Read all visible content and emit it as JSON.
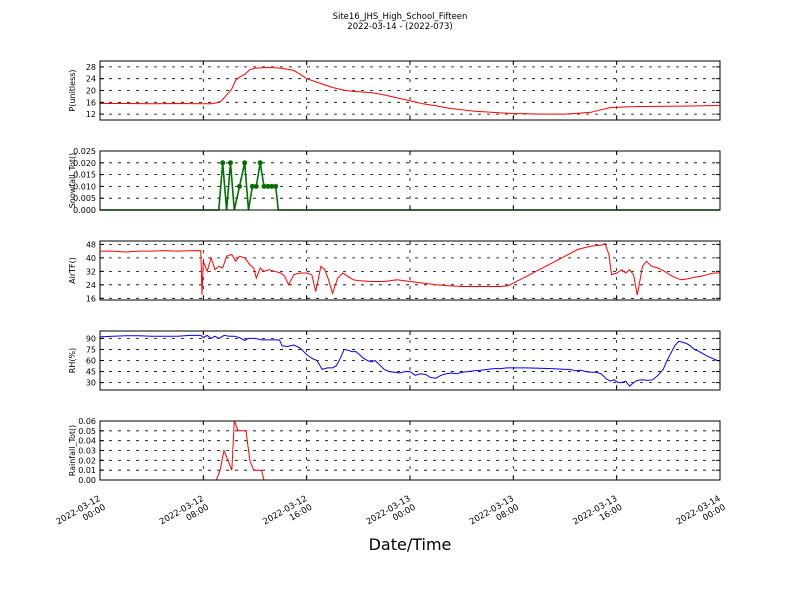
{
  "header": {
    "title": "Site16_JHS_High_School_Fifteen",
    "subtitle": "2022-03-14 - (2022-073)"
  },
  "xaxis": {
    "label": "Date/Time",
    "range_hours": [
      0,
      48
    ],
    "ticks": [
      {
        "hours": 0,
        "line1": "2022-03-12",
        "line2": "00:00"
      },
      {
        "hours": 8,
        "line1": "2022-03-12",
        "line2": "08:00"
      },
      {
        "hours": 16,
        "line1": "2022-03-12",
        "line2": "16:00"
      },
      {
        "hours": 24,
        "line1": "2022-03-13",
        "line2": "00:00"
      },
      {
        "hours": 32,
        "line1": "2022-03-13",
        "line2": "08:00"
      },
      {
        "hours": 40,
        "line1": "2022-03-13",
        "line2": "16:00"
      },
      {
        "hours": 48,
        "line1": "2022-03-14",
        "line2": "00:00"
      }
    ]
  },
  "chart_data": [
    {
      "type": "line",
      "ylabel": "P(unitless)",
      "ylim": [
        10,
        30
      ],
      "yticks": [
        12,
        16,
        20,
        24,
        28
      ],
      "yticklabels": [
        "12",
        "16",
        "20",
        "24",
        "28"
      ],
      "color": "#ff0000",
      "markers": false,
      "grid": true,
      "points": [
        [
          0,
          15.6
        ],
        [
          2,
          15.6
        ],
        [
          4,
          15.5
        ],
        [
          6,
          15.6
        ],
        [
          8,
          15.5
        ],
        [
          8.6,
          15.5
        ],
        [
          9,
          15.8
        ],
        [
          9.4,
          16.5
        ],
        [
          9.8,
          18.5
        ],
        [
          10.2,
          20.5
        ],
        [
          10.5,
          23.5
        ],
        [
          10.8,
          24.5
        ],
        [
          11.2,
          25.5
        ],
        [
          11.6,
          27
        ],
        [
          12,
          27.6
        ],
        [
          13,
          27.8
        ],
        [
          14,
          27.6
        ],
        [
          14.5,
          27.2
        ],
        [
          15,
          26.8
        ],
        [
          15.5,
          25.5
        ],
        [
          16,
          24
        ],
        [
          17,
          22.5
        ],
        [
          18,
          21
        ],
        [
          19,
          20
        ],
        [
          20,
          19.6
        ],
        [
          21,
          19.3
        ],
        [
          22,
          18.5
        ],
        [
          23,
          17.5
        ],
        [
          24,
          16.5
        ],
        [
          25,
          15.5
        ],
        [
          26,
          14.8
        ],
        [
          27,
          14
        ],
        [
          28,
          13.5
        ],
        [
          29,
          13
        ],
        [
          30,
          12.7
        ],
        [
          31,
          12.4
        ],
        [
          32,
          12.2
        ],
        [
          33,
          12.1
        ],
        [
          34,
          12
        ],
        [
          35,
          12
        ],
        [
          36,
          12
        ],
        [
          37,
          12.3
        ],
        [
          38,
          12.6
        ],
        [
          38.8,
          13.5
        ],
        [
          39.5,
          14.2
        ],
        [
          41,
          14.5
        ],
        [
          43,
          14.6
        ],
        [
          45,
          14.7
        ],
        [
          48,
          14.9
        ]
      ]
    },
    {
      "type": "line",
      "ylabel": "Snowfall_Tot()",
      "ylim": [
        0,
        0.025
      ],
      "yticks": [
        0,
        0.005,
        0.01,
        0.015,
        0.02,
        0.025
      ],
      "yticklabels": [
        "0.000",
        "0.005",
        "0.010",
        "0.015",
        "0.020",
        "0.025"
      ],
      "color": "#007000",
      "markers": true,
      "grid": true,
      "points": [
        [
          0,
          0
        ],
        [
          2,
          0
        ],
        [
          4,
          0
        ],
        [
          6,
          0
        ],
        [
          8,
          0
        ],
        [
          9.2,
          0
        ],
        [
          9.5,
          0.02
        ],
        [
          9.8,
          0
        ],
        [
          10.1,
          0.02
        ],
        [
          10.4,
          0
        ],
        [
          10.8,
          0.01
        ],
        [
          11.2,
          0.02
        ],
        [
          11.5,
          0
        ],
        [
          11.8,
          0.01
        ],
        [
          12.1,
          0.01
        ],
        [
          12.4,
          0.02
        ],
        [
          12.7,
          0.01
        ],
        [
          13,
          0.01
        ],
        [
          13.3,
          0.01
        ],
        [
          13.6,
          0.01
        ],
        [
          13.8,
          0
        ],
        [
          16,
          0
        ],
        [
          20,
          0
        ],
        [
          24,
          0
        ],
        [
          28,
          0
        ],
        [
          32,
          0
        ],
        [
          36,
          0
        ],
        [
          40,
          0
        ],
        [
          44,
          0
        ],
        [
          48,
          0
        ]
      ]
    },
    {
      "type": "line",
      "ylabel": "AirTF()",
      "ylim": [
        15,
        50
      ],
      "yticks": [
        16,
        24,
        32,
        40,
        48
      ],
      "yticklabels": [
        "16",
        "24",
        "32",
        "40",
        "48"
      ],
      "color": "#ff0000",
      "markers": false,
      "grid": true,
      "points": [
        [
          0,
          44
        ],
        [
          1,
          44
        ],
        [
          2,
          43.5
        ],
        [
          3,
          44
        ],
        [
          4,
          44
        ],
        [
          5,
          44.3
        ],
        [
          6,
          44
        ],
        [
          7,
          44.2
        ],
        [
          7.8,
          44.3
        ],
        [
          7.9,
          18
        ],
        [
          8,
          38
        ],
        [
          8.3,
          32
        ],
        [
          8.6,
          40
        ],
        [
          8.9,
          33
        ],
        [
          9.2,
          35
        ],
        [
          9.5,
          34
        ],
        [
          9.8,
          41
        ],
        [
          10.2,
          42
        ],
        [
          10.5,
          38
        ],
        [
          10.8,
          41
        ],
        [
          11.2,
          40
        ],
        [
          11.6,
          36
        ],
        [
          11.9,
          34
        ],
        [
          12.1,
          28
        ],
        [
          12.4,
          34
        ],
        [
          12.7,
          32
        ],
        [
          13.1,
          33
        ],
        [
          13.5,
          32
        ],
        [
          14,
          31
        ],
        [
          14.3,
          29
        ],
        [
          14.6,
          24
        ],
        [
          15,
          30
        ],
        [
          15.5,
          31
        ],
        [
          16,
          31
        ],
        [
          16.4,
          30
        ],
        [
          16.7,
          20
        ],
        [
          17.1,
          35
        ],
        [
          17.4,
          33
        ],
        [
          17.7,
          27
        ],
        [
          18,
          19
        ],
        [
          18.4,
          28
        ],
        [
          18.8,
          31
        ],
        [
          19.2,
          29
        ],
        [
          19.6,
          27
        ],
        [
          20,
          26.5
        ],
        [
          21,
          26
        ],
        [
          22,
          26
        ],
        [
          23,
          27
        ],
        [
          24,
          26
        ],
        [
          25,
          25
        ],
        [
          26,
          24
        ],
        [
          27,
          23.5
        ],
        [
          28,
          23
        ],
        [
          29,
          23
        ],
        [
          30,
          23
        ],
        [
          31,
          23
        ],
        [
          31.6,
          23.5
        ],
        [
          32,
          25
        ],
        [
          33,
          29
        ],
        [
          34,
          33
        ],
        [
          35,
          37
        ],
        [
          36,
          41
        ],
        [
          37,
          45
        ],
        [
          38,
          47
        ],
        [
          38.8,
          47.5
        ],
        [
          39.1,
          48.5
        ],
        [
          39.4,
          42
        ],
        [
          39.6,
          30
        ],
        [
          40,
          31
        ],
        [
          40.4,
          33
        ],
        [
          40.7,
          31
        ],
        [
          41,
          33
        ],
        [
          41.3,
          30
        ],
        [
          41.6,
          18
        ],
        [
          42,
          35
        ],
        [
          42.3,
          38
        ],
        [
          42.7,
          35
        ],
        [
          43.2,
          34
        ],
        [
          43.7,
          32
        ],
        [
          44.1,
          30
        ],
        [
          44.6,
          28
        ],
        [
          45,
          27
        ],
        [
          45.5,
          27.5
        ],
        [
          46,
          28.5
        ],
        [
          46.5,
          29
        ],
        [
          47,
          30
        ],
        [
          47.5,
          31
        ],
        [
          48,
          31
        ]
      ]
    },
    {
      "type": "line",
      "ylabel": "RH(%)",
      "ylim": [
        20,
        100
      ],
      "yticks": [
        30,
        45,
        60,
        75,
        90
      ],
      "yticklabels": [
        "30",
        "45",
        "60",
        "75",
        "90"
      ],
      "color": "#0000ff",
      "markers": false,
      "grid": true,
      "points": [
        [
          0,
          92
        ],
        [
          1,
          93
        ],
        [
          2,
          93.5
        ],
        [
          3,
          93.5
        ],
        [
          4,
          93
        ],
        [
          5,
          93
        ],
        [
          6,
          93
        ],
        [
          7,
          94
        ],
        [
          7.8,
          94
        ],
        [
          8,
          91
        ],
        [
          8.3,
          94
        ],
        [
          8.6,
          90
        ],
        [
          8.9,
          93
        ],
        [
          9.2,
          90
        ],
        [
          9.6,
          94
        ],
        [
          10,
          93
        ],
        [
          10.4,
          93
        ],
        [
          10.8,
          91
        ],
        [
          11.2,
          87
        ],
        [
          11.5,
          90
        ],
        [
          12,
          90
        ],
        [
          12.5,
          88
        ],
        [
          13,
          88
        ],
        [
          13.5,
          88
        ],
        [
          13.9,
          88
        ],
        [
          14.1,
          80
        ],
        [
          14.5,
          79
        ],
        [
          15,
          81
        ],
        [
          15.5,
          77
        ],
        [
          16,
          68
        ],
        [
          16.5,
          62
        ],
        [
          16.8,
          60
        ],
        [
          17.2,
          48
        ],
        [
          17.6,
          50
        ],
        [
          18,
          50
        ],
        [
          18.3,
          53
        ],
        [
          18.6,
          63
        ],
        [
          18.9,
          75
        ],
        [
          19.2,
          74
        ],
        [
          19.5,
          72
        ],
        [
          19.8,
          72
        ],
        [
          20.1,
          68
        ],
        [
          20.4,
          63
        ],
        [
          20.7,
          60
        ],
        [
          21,
          58
        ],
        [
          21.3,
          60
        ],
        [
          21.6,
          55
        ],
        [
          22,
          48
        ],
        [
          22.4,
          45
        ],
        [
          22.8,
          44
        ],
        [
          23.2,
          43
        ],
        [
          23.6,
          45
        ],
        [
          24,
          45
        ],
        [
          24.4,
          40
        ],
        [
          24.8,
          42
        ],
        [
          25.2,
          41
        ],
        [
          25.6,
          37
        ],
        [
          26,
          36
        ],
        [
          26.4,
          40
        ],
        [
          26.8,
          42
        ],
        [
          27.2,
          43
        ],
        [
          27.6,
          42
        ],
        [
          28,
          44
        ],
        [
          28.5,
          45
        ],
        [
          29,
          46
        ],
        [
          29.5,
          47
        ],
        [
          30,
          48
        ],
        [
          30.5,
          49
        ],
        [
          31,
          49
        ],
        [
          31.5,
          50
        ],
        [
          32,
          50
        ],
        [
          33,
          50
        ],
        [
          34,
          49.5
        ],
        [
          35,
          49
        ],
        [
          36,
          48
        ],
        [
          36.4,
          48
        ],
        [
          36.8,
          46
        ],
        [
          37.2,
          47
        ],
        [
          37.6,
          45
        ],
        [
          38,
          44
        ],
        [
          38.4,
          44
        ],
        [
          38.8,
          42
        ],
        [
          39.2,
          35
        ],
        [
          39.5,
          32
        ],
        [
          39.8,
          34
        ],
        [
          40.1,
          30
        ],
        [
          40.4,
          30
        ],
        [
          40.7,
          32
        ],
        [
          41,
          25
        ],
        [
          41.3,
          30
        ],
        [
          41.6,
          33
        ],
        [
          42,
          34
        ],
        [
          42.4,
          33
        ],
        [
          42.8,
          34
        ],
        [
          43.2,
          40
        ],
        [
          43.6,
          48
        ],
        [
          43.9,
          60
        ],
        [
          44.2,
          70
        ],
        [
          44.5,
          80
        ],
        [
          44.8,
          86
        ],
        [
          45.1,
          85
        ],
        [
          45.4,
          83
        ],
        [
          45.7,
          80
        ],
        [
          46,
          75
        ],
        [
          46.3,
          73
        ],
        [
          46.6,
          70
        ],
        [
          47,
          66
        ],
        [
          47.4,
          63
        ],
        [
          47.8,
          60
        ],
        [
          48,
          59
        ]
      ]
    },
    {
      "type": "line",
      "ylabel": "Rainfall_Tot()",
      "ylim": [
        0,
        0.06
      ],
      "yticks": [
        0,
        0.01,
        0.02,
        0.03,
        0.04,
        0.05,
        0.06
      ],
      "yticklabels": [
        "0.00",
        "0.01",
        "0.02",
        "0.03",
        "0.04",
        "0.05",
        "0.06"
      ],
      "color": "#ff0000",
      "markers": false,
      "grid": true,
      "points": [
        [
          0,
          0
        ],
        [
          4,
          0
        ],
        [
          8,
          0
        ],
        [
          9,
          0
        ],
        [
          9.3,
          0.01
        ],
        [
          9.6,
          0.03
        ],
        [
          9.9,
          0.02
        ],
        [
          10.2,
          0.01
        ],
        [
          10.4,
          0.06
        ],
        [
          10.7,
          0.05
        ],
        [
          11,
          0.05
        ],
        [
          11.3,
          0.05
        ],
        [
          11.6,
          0.02
        ],
        [
          11.9,
          0.01
        ],
        [
          12.2,
          0.01
        ],
        [
          12.5,
          0.01
        ],
        [
          12.7,
          0
        ],
        [
          16,
          0
        ],
        [
          20,
          0
        ],
        [
          24,
          0
        ],
        [
          28,
          0
        ],
        [
          32,
          0
        ],
        [
          36,
          0
        ],
        [
          40,
          0
        ],
        [
          44,
          0
        ],
        [
          48,
          0
        ]
      ]
    }
  ]
}
